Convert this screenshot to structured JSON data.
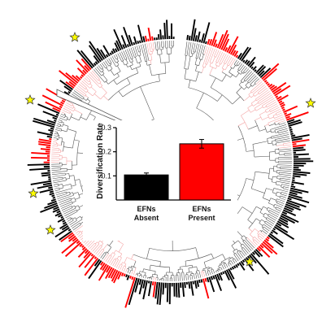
{
  "chart_data": [
    {
      "type": "bar",
      "ylabel": "Diversification Rate",
      "categories": [
        "EFNs Absent",
        "EFNs Present"
      ],
      "category_lines": [
        [
          "EFNs",
          "Absent"
        ],
        [
          "EFNs",
          "Present"
        ]
      ],
      "values": [
        0.104,
        0.233
      ],
      "errors": [
        0.008,
        0.018
      ],
      "colors": [
        "#000000",
        "#ff0000"
      ],
      "ylim": [
        0,
        0.3
      ],
      "yticks": [
        "0.1",
        "0.2",
        "0.3"
      ],
      "ytick_values": [
        0.1,
        0.2,
        0.3
      ],
      "grid": false,
      "legend": "none"
    },
    {
      "type": "other",
      "subtype": "circular-phylogeny-with-radial-bars",
      "trait_colors": {
        "absent": "#000000",
        "present": "#ff0000",
        "present_branch": "#f4a6a6",
        "branch": "#555555"
      },
      "markers": [
        {
          "kind": "star",
          "color": "#ffff00"
        },
        {
          "kind": "star",
          "color": "#ffff00"
        },
        {
          "kind": "star",
          "color": "#ffff00"
        },
        {
          "kind": "star",
          "color": "#ffff00"
        },
        {
          "kind": "star",
          "color": "#ffff00"
        },
        {
          "kind": "star",
          "color": "#ffff00"
        }
      ]
    }
  ]
}
